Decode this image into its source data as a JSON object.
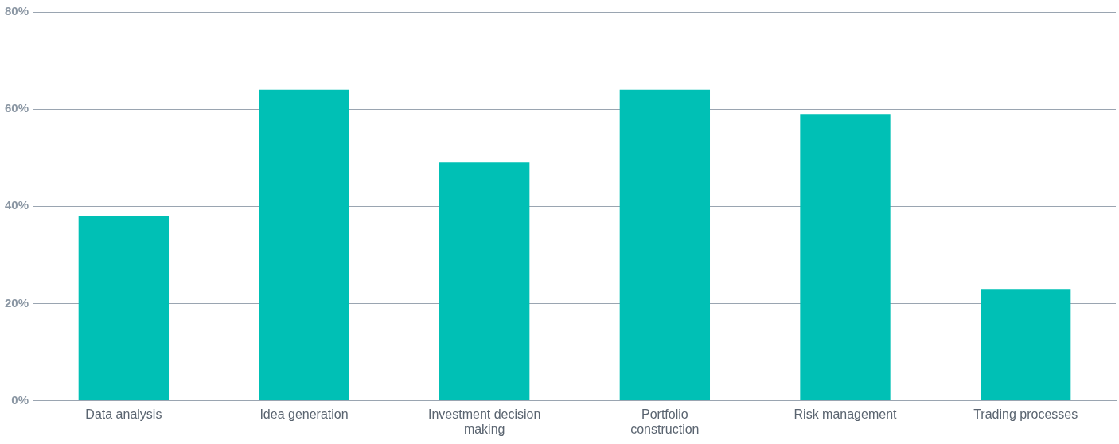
{
  "chart_data": {
    "type": "bar",
    "categories": [
      "Data analysis",
      "Idea generation",
      "Investment decision making",
      "Portfolio construction",
      "Risk management",
      "Trading processes"
    ],
    "values": [
      38,
      64,
      49,
      64,
      59,
      23
    ],
    "color": "#00c0b5",
    "ylim": [
      0,
      80
    ],
    "yticks": [
      {
        "value": 0,
        "label": "0%"
      },
      {
        "value": 20,
        "label": "20%"
      },
      {
        "value": 40,
        "label": "40%"
      },
      {
        "value": 60,
        "label": "60%"
      },
      {
        "value": 80,
        "label": "80%"
      }
    ],
    "grid": "y",
    "legend": false
  }
}
